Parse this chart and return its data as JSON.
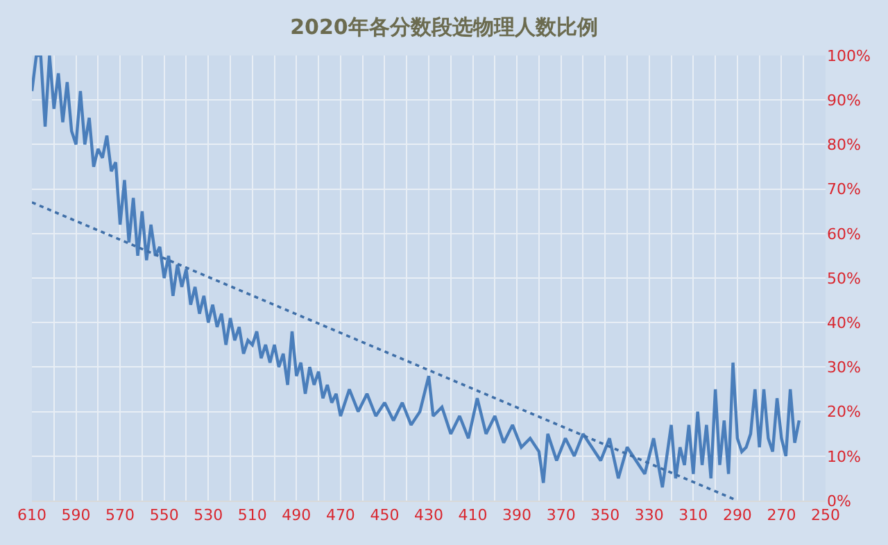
{
  "chart_data": {
    "type": "line",
    "title": "2020年各分数段选物理人数比例",
    "grid": true,
    "xlim": [
      610,
      250
    ],
    "xticks": [
      610,
      {
        "value": 600,
        "label": null
      },
      590,
      {
        "value": 580,
        "label": null
      },
      570,
      {
        "value": 560,
        "label": null
      },
      550,
      {
        "value": 540,
        "label": null
      },
      530,
      {
        "value": 520,
        "label": null
      },
      510,
      {
        "value": 500,
        "label": null
      },
      490,
      {
        "value": 480,
        "label": null
      },
      470,
      {
        "value": 460,
        "label": null
      },
      450,
      {
        "value": 440,
        "label": null
      },
      430,
      {
        "value": 420,
        "label": null
      },
      410,
      {
        "value": 400,
        "label": null
      },
      390,
      {
        "value": 380,
        "label": null
      },
      370,
      {
        "value": 360,
        "label": null
      },
      350,
      {
        "value": 340,
        "label": null
      },
      330,
      {
        "value": 320,
        "label": null
      },
      310,
      {
        "value": 300,
        "label": null
      },
      290,
      {
        "value": 280,
        "label": null
      },
      270,
      {
        "value": 260,
        "label": null
      },
      250
    ],
    "ylim": [
      0,
      100
    ],
    "yticks": [
      {
        "value": 0,
        "label": "0%"
      },
      {
        "value": 10,
        "label": "10%"
      },
      {
        "value": 20,
        "label": "20%"
      },
      {
        "value": 30,
        "label": "30%"
      },
      {
        "value": 40,
        "label": "40%"
      },
      {
        "value": 50,
        "label": "50%"
      },
      {
        "value": 60,
        "label": "60%"
      },
      {
        "value": 70,
        "label": "70%"
      },
      {
        "value": 80,
        "label": "80%"
      },
      {
        "value": 90,
        "label": "90%"
      },
      {
        "value": 100,
        "label": "100%"
      }
    ],
    "series": [
      {
        "color": "#4a7ebb",
        "line_style": "solid",
        "x": [
          610,
          608,
          606,
          604,
          602,
          600,
          598,
          596,
          594,
          592,
          590,
          588,
          586,
          584,
          582,
          580,
          578,
          576,
          574,
          572,
          570,
          568,
          566,
          564,
          562,
          560,
          558,
          556,
          554,
          552,
          550,
          548,
          546,
          544,
          542,
          540,
          538,
          536,
          534,
          532,
          530,
          528,
          526,
          524,
          522,
          520,
          518,
          516,
          514,
          512,
          510,
          508,
          506,
          504,
          502,
          500,
          498,
          496,
          494,
          492,
          490,
          488,
          486,
          484,
          482,
          480,
          478,
          476,
          474,
          472,
          470,
          466,
          462,
          458,
          454,
          450,
          446,
          442,
          438,
          434,
          430,
          428,
          424,
          420,
          416,
          412,
          408,
          404,
          400,
          396,
          392,
          388,
          384,
          380,
          378,
          376,
          372,
          368,
          364,
          360,
          356,
          352,
          348,
          344,
          340,
          336,
          332,
          328,
          324,
          320,
          318,
          316,
          314,
          312,
          310,
          308,
          306,
          304,
          302,
          300,
          298,
          296,
          294,
          292,
          290,
          288,
          286,
          284,
          282,
          280,
          278,
          276,
          274,
          272,
          270,
          268,
          266,
          264,
          262
        ],
        "values": [
          92,
          100,
          100,
          84,
          100,
          88,
          96,
          85,
          94,
          83,
          80,
          92,
          80,
          86,
          75,
          79,
          77,
          82,
          74,
          76,
          62,
          72,
          58,
          68,
          55,
          65,
          54,
          62,
          55,
          57,
          50,
          55,
          46,
          53,
          48,
          52,
          44,
          48,
          42,
          46,
          40,
          44,
          39,
          42,
          35,
          41,
          36,
          39,
          33,
          36,
          35,
          38,
          32,
          35,
          31,
          35,
          30,
          33,
          26,
          38,
          28,
          31,
          24,
          30,
          26,
          29,
          23,
          26,
          22,
          24,
          19,
          25,
          20,
          24,
          19,
          22,
          18,
          22,
          17,
          20,
          28,
          19,
          21,
          15,
          19,
          14,
          23,
          15,
          19,
          13,
          17,
          12,
          14,
          11,
          4,
          15,
          9,
          14,
          10,
          15,
          12,
          9,
          14,
          5,
          12,
          9,
          6,
          14,
          3,
          17,
          5,
          12,
          8,
          17,
          6,
          20,
          8,
          17,
          5,
          25,
          8,
          18,
          6,
          31,
          14,
          11,
          12,
          15,
          25,
          12,
          25,
          14,
          11,
          23,
          14,
          10,
          25,
          13,
          18
        ]
      },
      {
        "color": "#3f6fa8",
        "line_style": "dotted",
        "x": [
          610,
          290
        ],
        "values": [
          67,
          0
        ]
      }
    ]
  }
}
